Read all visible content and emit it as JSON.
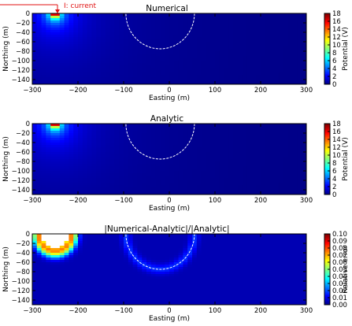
{
  "annotation": "I: current",
  "chart_data": [
    {
      "type": "heatmap",
      "title": "Numerical",
      "xlabel": "Easting (m)",
      "ylabel": "Northing (m)",
      "colorbar_label": "Potential (V)",
      "xlim": [
        -300,
        300
      ],
      "ylim": [
        -150,
        0
      ],
      "xticks": [
        -300,
        -200,
        -100,
        0,
        100,
        200,
        300
      ],
      "yticks": [
        0,
        -20,
        -40,
        -60,
        -80,
        -100,
        -120,
        -140
      ],
      "clim": [
        0,
        18
      ],
      "cticks": [
        0,
        2,
        4,
        6,
        8,
        10,
        12,
        14,
        16,
        18
      ],
      "source": {
        "x": -250,
        "y": 0
      },
      "sphere": {
        "center_x": -20,
        "center_y": 0,
        "radius": 75
      },
      "colormap": "jet"
    },
    {
      "type": "heatmap",
      "title": "Analytic",
      "xlabel": "Easting (m)",
      "ylabel": "Northing (m)",
      "colorbar_label": "Potential (V)",
      "xlim": [
        -300,
        300
      ],
      "ylim": [
        -150,
        0
      ],
      "xticks": [
        -300,
        -200,
        -100,
        0,
        100,
        200,
        300
      ],
      "yticks": [
        0,
        -20,
        -40,
        -60,
        -80,
        -100,
        -120,
        -140
      ],
      "clim": [
        0,
        18
      ],
      "cticks": [
        0,
        2,
        4,
        6,
        8,
        10,
        12,
        14,
        16,
        18
      ],
      "source": {
        "x": -250,
        "y": 0
      },
      "sphere": {
        "center_x": -20,
        "center_y": 0,
        "radius": 75
      },
      "colormap": "jet"
    },
    {
      "type": "heatmap",
      "title": "|Numerical-Analytic|/|Analytic|",
      "xlabel": "Easting (m)",
      "ylabel": "Northing (m)",
      "colorbar_label": "Relative error",
      "xlim": [
        -300,
        300
      ],
      "ylim": [
        -150,
        0
      ],
      "xticks": [
        -300,
        -200,
        -100,
        0,
        100,
        200,
        300
      ],
      "yticks": [
        0,
        -20,
        -40,
        -60,
        -80,
        -100,
        -120,
        -140
      ],
      "clim": [
        0,
        0.1
      ],
      "cticks": [
        "0.00",
        "0.01",
        "0.02",
        "0.03",
        "0.04",
        "0.05",
        "0.06",
        "0.07",
        "0.08",
        "0.09",
        "0.10"
      ],
      "source": {
        "x": -250,
        "y": 0
      },
      "sphere": {
        "center_x": -20,
        "center_y": 0,
        "radius": 75
      },
      "colormap": "jet"
    }
  ]
}
